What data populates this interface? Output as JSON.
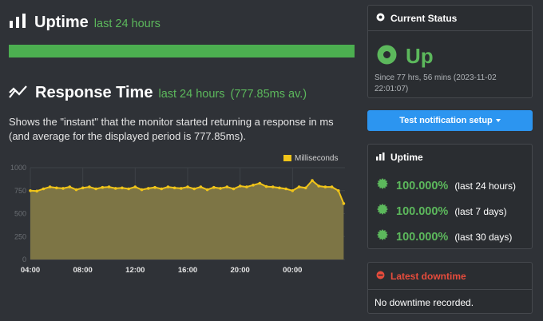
{
  "uptime": {
    "title": "Uptime",
    "period": "last 24 hours",
    "bar_color": "#4caf50"
  },
  "response_time": {
    "title": "Response Time",
    "period": "last 24 hours",
    "average": "(777.85ms av.)",
    "description": "Shows the \"instant\" that the monitor started returning a response in ms (and average for the displayed period is 777.85ms)."
  },
  "chart_data": {
    "type": "area",
    "legend": [
      "Milliseconds"
    ],
    "legend_position": "top-right",
    "ylim": [
      0,
      1000
    ],
    "y_ticks": [
      "0",
      "250",
      "500",
      "750",
      "1000"
    ],
    "x_ticks": [
      "04:00",
      "08:00",
      "12:00",
      "16:00",
      "20:00",
      "00:00"
    ],
    "x_tick_hours": [
      4,
      8,
      12,
      16,
      20,
      24
    ],
    "x_range_hours": [
      4,
      28
    ],
    "grid": true,
    "series": [
      {
        "name": "Milliseconds",
        "color": "#f0c419",
        "fill": "#7d7545",
        "x": [
          4.0,
          4.5,
          5.0,
          5.5,
          6.0,
          6.5,
          7.0,
          7.5,
          8.0,
          8.5,
          9.0,
          9.5,
          10.0,
          10.5,
          11.0,
          11.5,
          12.0,
          12.5,
          13.0,
          13.5,
          14.0,
          14.5,
          15.0,
          15.5,
          16.0,
          16.5,
          17.0,
          17.5,
          18.0,
          18.5,
          19.0,
          19.5,
          20.0,
          20.5,
          21.0,
          21.5,
          22.0,
          22.5,
          23.0,
          23.5,
          24.0,
          24.5,
          25.0,
          25.5,
          26.0,
          26.5,
          27.0,
          27.5,
          27.9
        ],
        "values": [
          750,
          745,
          770,
          790,
          780,
          775,
          790,
          760,
          780,
          790,
          770,
          785,
          790,
          775,
          780,
          770,
          790,
          760,
          775,
          785,
          770,
          790,
          780,
          775,
          790,
          770,
          790,
          760,
          785,
          775,
          790,
          770,
          800,
          790,
          810,
          830,
          795,
          790,
          780,
          770,
          750,
          790,
          780,
          860,
          800,
          790,
          790,
          750,
          610
        ]
      }
    ]
  },
  "current_status": {
    "title": "Current Status",
    "status": "Up",
    "since": "Since 77 hrs, 56 mins (2023-11-02 22:01:07)",
    "color": "#5cb85c"
  },
  "notification_button": {
    "label": "Test notification setup"
  },
  "uptime_card": {
    "title": "Uptime",
    "rows": [
      {
        "pct": "100.000%",
        "period": "(last 24 hours)"
      },
      {
        "pct": "100.000%",
        "period": "(last 7 days)"
      },
      {
        "pct": "100.000%",
        "period": "(last 30 days)"
      }
    ]
  },
  "latest_downtime": {
    "title": "Latest downtime",
    "text": "No downtime recorded.",
    "color": "#e74c3c"
  },
  "icons": {
    "uptime": "bar-chart-icon",
    "response": "trend-line-icon",
    "status": "record-icon",
    "badge": "burst-badge-icon",
    "alert": "alert-circle-icon",
    "caret": "caret-down-icon"
  }
}
